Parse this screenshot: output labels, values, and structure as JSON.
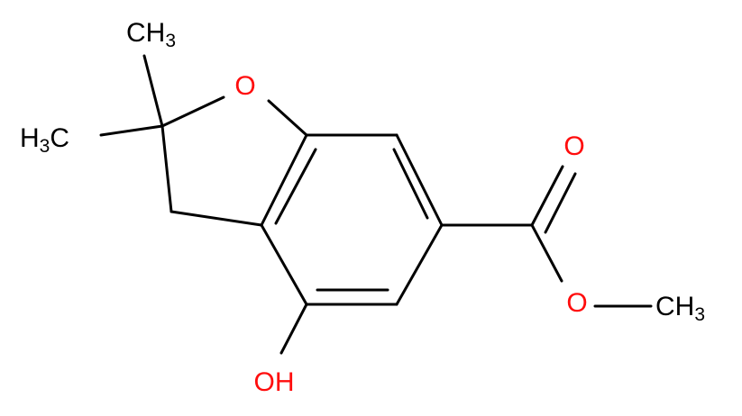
{
  "molecule": {
    "atoms": [
      {
        "label": "CH",
        "sub": "3"
      },
      {
        "label": "H",
        "sub": "3",
        "tail": "C"
      },
      {
        "label": "O"
      },
      {
        "label": "O"
      },
      {
        "label": "O"
      },
      {
        "label": "CH",
        "sub": "3"
      },
      {
        "label": "OH"
      }
    ]
  }
}
